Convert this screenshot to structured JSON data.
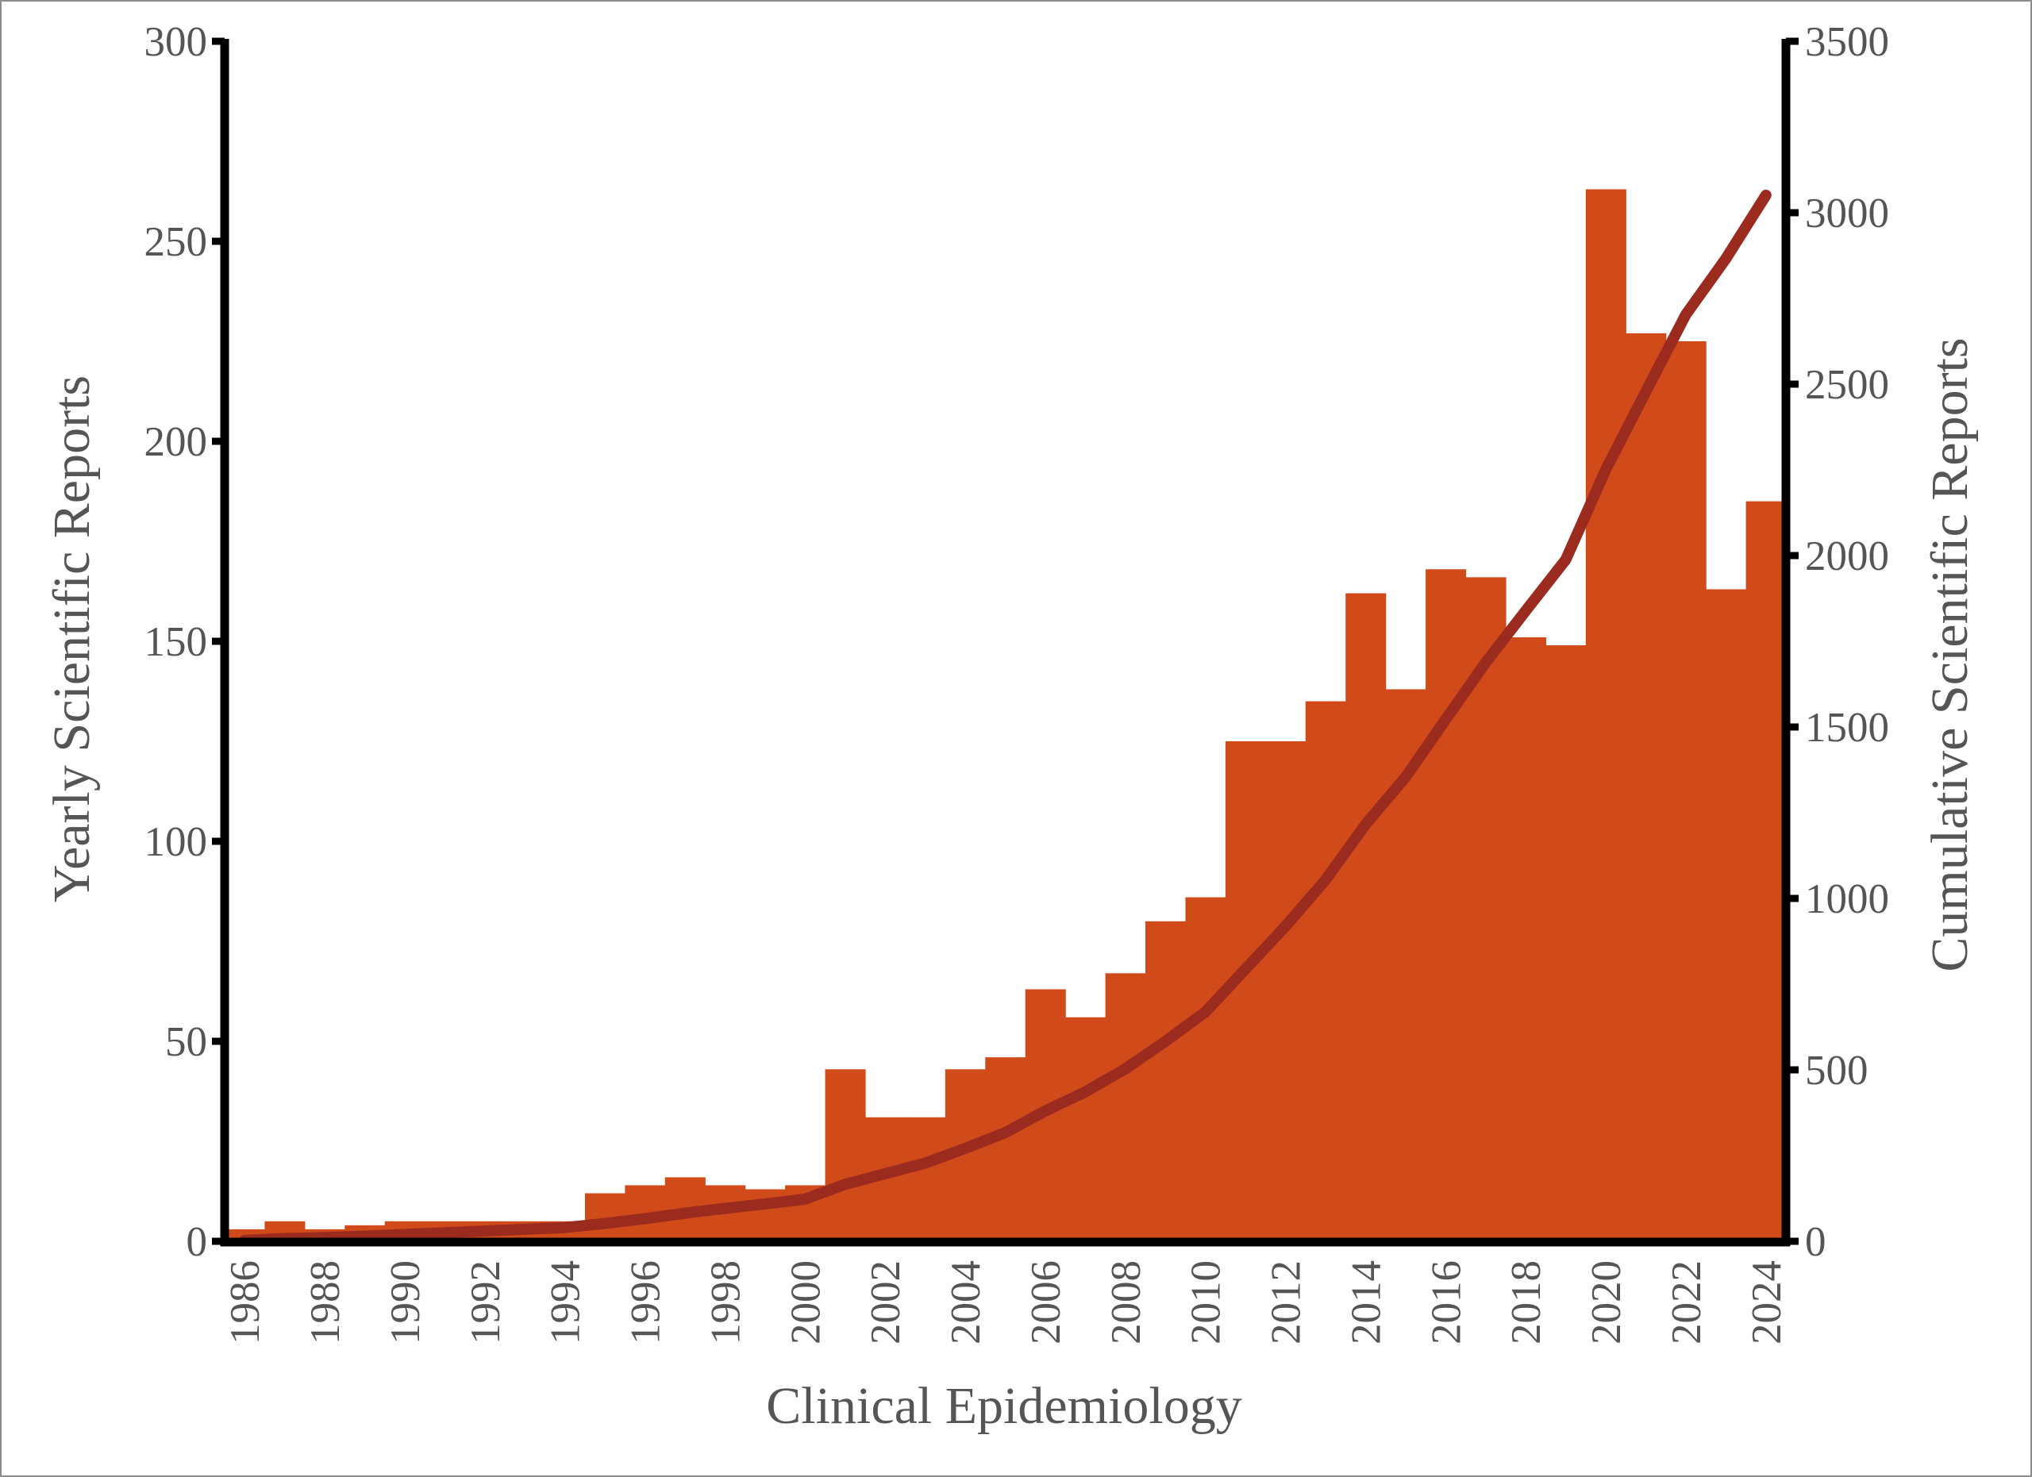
{
  "chart_data": {
    "type": "bar",
    "xlabel": "Clinical Epidemiology",
    "ylabel_left": "Yearly Scientific Reports",
    "ylabel_right": "Cumulative Scientific Reports",
    "ylim_left": [
      0,
      300
    ],
    "ylim_right": [
      0,
      3500
    ],
    "yticks_left": [
      "0",
      "50",
      "100",
      "150",
      "200",
      "250",
      "300"
    ],
    "yticks_right": [
      "0",
      "500",
      "1000",
      "1500",
      "2000",
      "2500",
      "3000",
      "3500"
    ],
    "xtick_labels": [
      "1986",
      "1988",
      "1990",
      "1992",
      "1994",
      "1996",
      "1998",
      "2000",
      "2002",
      "2004",
      "2006",
      "2008",
      "2010",
      "2012",
      "2014",
      "2016",
      "2018",
      "2020",
      "2022",
      "2024"
    ],
    "grid": false,
    "years": [
      1986,
      1987,
      1988,
      1989,
      1990,
      1991,
      1992,
      1993,
      1994,
      1995,
      1996,
      1997,
      1998,
      1999,
      2000,
      2001,
      2002,
      2003,
      2004,
      2005,
      2006,
      2007,
      2008,
      2009,
      2010,
      2011,
      2012,
      2013,
      2014,
      2015,
      2016,
      2017,
      2018,
      2019,
      2020,
      2021,
      2022,
      2023,
      2024
    ],
    "series": [
      {
        "name": "Yearly Scientific Reports",
        "type": "bar",
        "axis": "left",
        "color": "#d04a1a",
        "values": [
          3,
          5,
          3,
          4,
          5,
          5,
          5,
          5,
          5,
          12,
          14,
          16,
          14,
          13,
          14,
          43,
          31,
          31,
          43,
          46,
          63,
          56,
          67,
          80,
          86,
          125,
          125,
          135,
          162,
          138,
          168,
          166,
          151,
          149,
          263,
          227,
          225,
          163,
          185
        ]
      },
      {
        "name": "Cumulative Scientific Reports",
        "type": "line",
        "axis": "right",
        "color": "#9b2a1f",
        "values": [
          3,
          8,
          11,
          15,
          20,
          25,
          30,
          35,
          40,
          52,
          66,
          82,
          96,
          109,
          123,
          166,
          197,
          228,
          271,
          317,
          380,
          436,
          503,
          583,
          669,
          794,
          919,
          1054,
          1216,
          1354,
          1522,
          1688,
          1839,
          1988,
          2251,
          2478,
          2703,
          2866,
          3051
        ]
      }
    ]
  }
}
